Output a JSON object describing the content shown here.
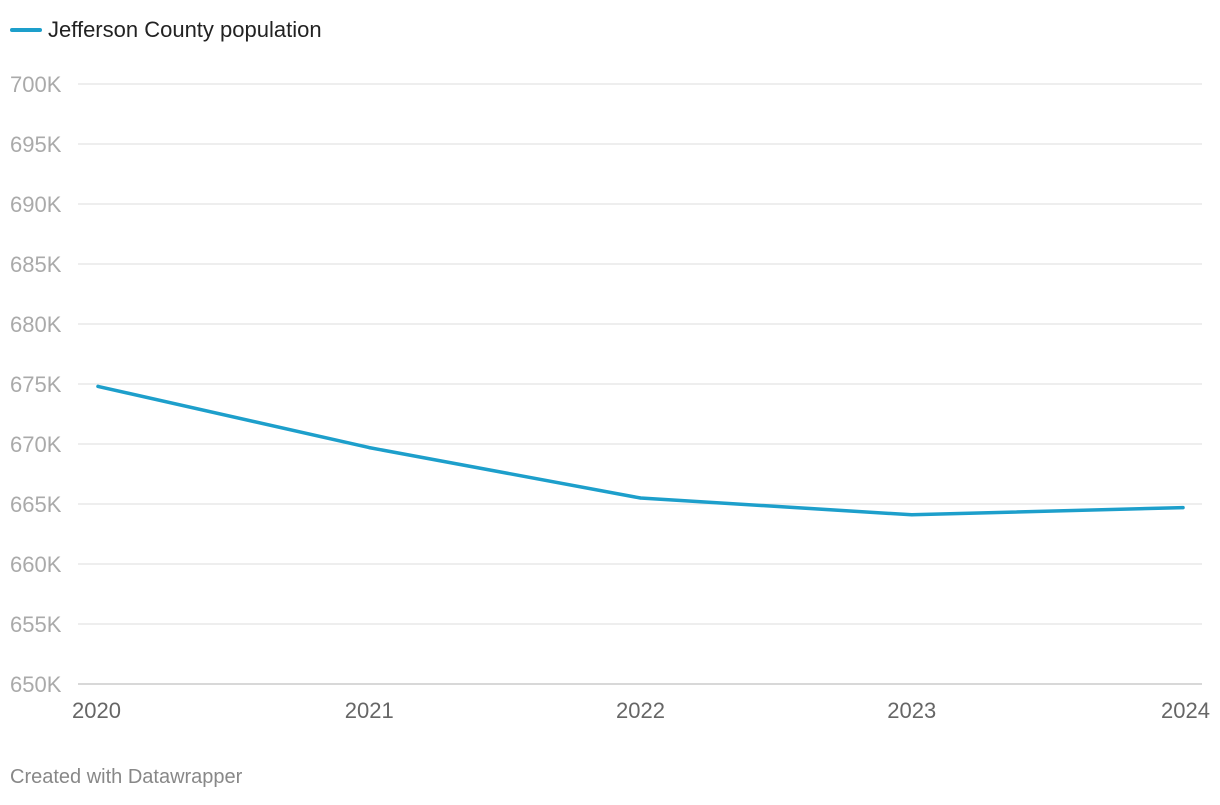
{
  "chart_data": {
    "type": "line",
    "title": "",
    "xlabel": "",
    "ylabel": "",
    "categories": [
      "2020",
      "2021",
      "2022",
      "2023",
      "2024"
    ],
    "series": [
      {
        "name": "Jefferson County population",
        "color": "#1d9fcb",
        "values": [
          674800,
          669700,
          665500,
          664100,
          664700
        ]
      }
    ],
    "ylim": [
      650000,
      700000
    ],
    "yticks": [
      650000,
      655000,
      660000,
      665000,
      670000,
      675000,
      680000,
      685000,
      690000,
      695000,
      700000
    ],
    "ytick_labels": [
      "650K",
      "655K",
      "660K",
      "665K",
      "670K",
      "675K",
      "680K",
      "685K",
      "690K",
      "695K",
      "700K"
    ],
    "grid": true,
    "legend": "top-left"
  },
  "footer": {
    "credit": "Created with Datawrapper"
  },
  "colors": {
    "line": "#1d9fcb",
    "grid": "#e3e3e3",
    "baseline": "#cccccc",
    "tick_text": "#aaaaaa",
    "xtick_text": "#666666",
    "legend_text": "#222222",
    "footer_text": "#888888"
  }
}
